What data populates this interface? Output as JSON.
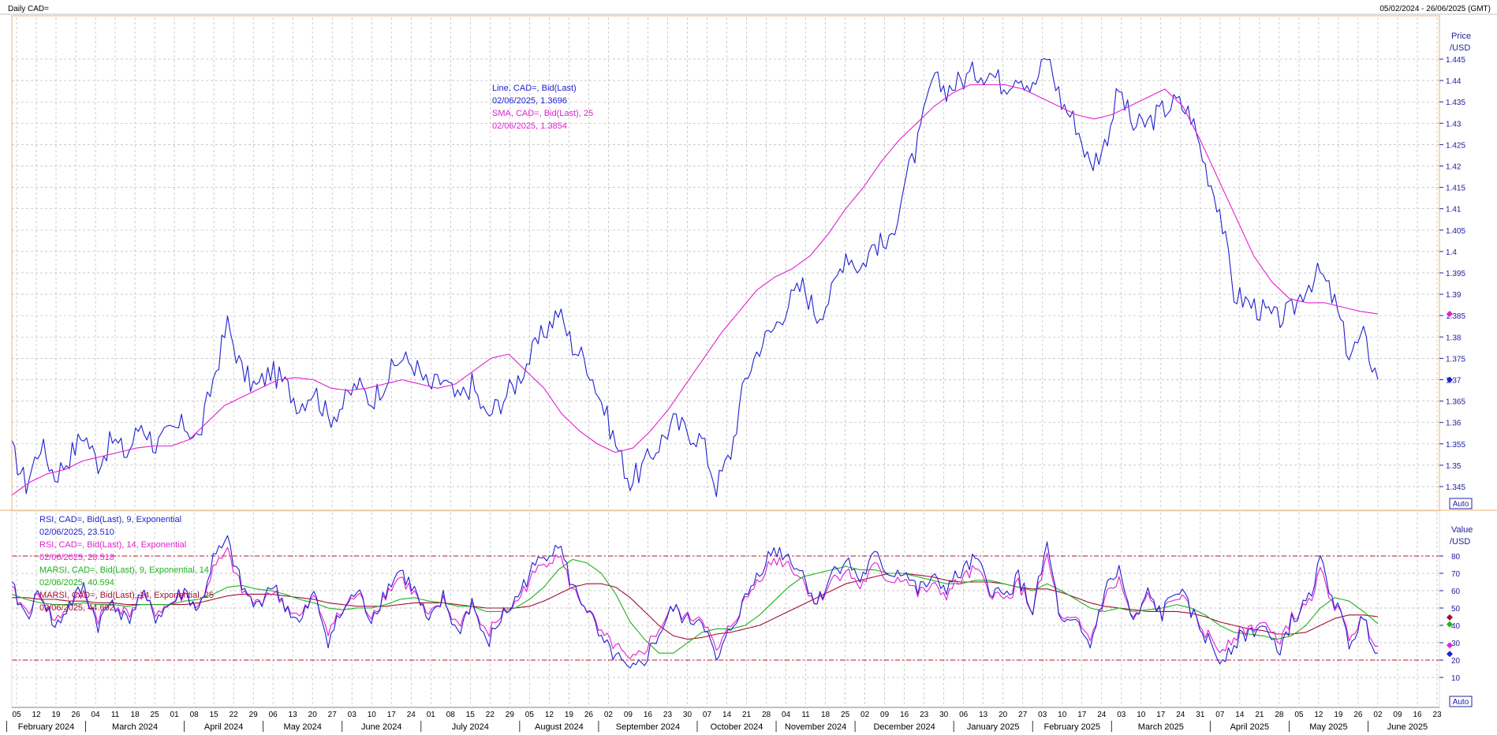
{
  "window": {
    "title": "Daily CAD=",
    "date_range": "05/02/2024 - 26/06/2025 (GMT)"
  },
  "colors": {
    "price_line": "#2020d0",
    "sma_line": "#e020d0",
    "rsi9": "#2020d0",
    "rsi14": "#e020d0",
    "marsi9": "#20b020",
    "marsi14": "#a01030",
    "grid": "#b0b0b0",
    "panel_border": "#f0b070",
    "ref_line": "#c01020"
  },
  "price_panel": {
    "axis_title": "Price",
    "axis_unit": "/USD",
    "auto_button": "Auto",
    "legend": [
      {
        "label": "Line, CAD=, Bid(Last)",
        "value": "02/06/2025, 1.3696",
        "color": "#2020d0"
      },
      {
        "label": "SMA, CAD=, Bid(Last),  25",
        "value": "02/06/2025, 1.3854",
        "color": "#e020d0"
      }
    ]
  },
  "rsi_panel": {
    "axis_title": "Value",
    "axis_unit": "/USD",
    "auto_button": "Auto",
    "legend": [
      {
        "label": "RSI, CAD=, Bid(Last),  9, Exponential",
        "value": "02/06/2025, 23.510",
        "color": "#2020d0"
      },
      {
        "label": "RSI, CAD=, Bid(Last),  14, Exponential",
        "value": "02/06/2025, 28.518",
        "color": "#e020d0"
      },
      {
        "label": "MARSI, CAD=, Bid(Last),  9, Exponential, 14",
        "value": "02/06/2025, 40.594",
        "color": "#20b020"
      },
      {
        "label": "MARSI, CAD=, Bid(Last),  14, Exponential, 25",
        "value": "02/06/2025, 44.602",
        "color": "#a01030"
      }
    ]
  },
  "chart_data": [
    {
      "type": "line",
      "panel": "price",
      "ylim": [
        1.341,
        1.45
      ],
      "yticks": [
        1.345,
        1.35,
        1.355,
        1.36,
        1.365,
        1.37,
        1.375,
        1.38,
        1.385,
        1.39,
        1.395,
        1.4,
        1.405,
        1.41,
        1.415,
        1.42,
        1.425,
        1.43,
        1.435,
        1.44,
        1.445
      ],
      "ytick_labels": [
        "1.345",
        "1.35",
        "1.355",
        "1.36",
        "1.365",
        "1.37",
        "1.375",
        "1.38",
        "1.385",
        "1.39",
        "1.395",
        "1.4",
        "1.405",
        "1.41",
        "1.415",
        "1.42",
        "1.425",
        "1.43",
        "1.435",
        "1.44",
        "1.445"
      ],
      "x_day_labels": [
        "05",
        "12",
        "19",
        "26",
        "04",
        "11",
        "18",
        "25",
        "01",
        "08",
        "15",
        "22",
        "29",
        "06",
        "13",
        "20",
        "27",
        "03",
        "10",
        "17",
        "24",
        "01",
        "08",
        "15",
        "22",
        "29",
        "05",
        "12",
        "19",
        "26",
        "02",
        "09",
        "16",
        "23",
        "30",
        "07",
        "14",
        "21",
        "28",
        "04",
        "11",
        "18",
        "25",
        "02",
        "09",
        "16",
        "23",
        "30",
        "06",
        "13",
        "20",
        "27",
        "03",
        "10",
        "17",
        "24",
        "03",
        "10",
        "17",
        "24",
        "31",
        "07",
        "14",
        "21",
        "28",
        "05",
        "12",
        "19",
        "26",
        "02",
        "09",
        "16",
        "23"
      ],
      "x_months": [
        "February 2024",
        "March 2024",
        "April 2024",
        "May 2024",
        "June 2024",
        "July 2024",
        "August 2024",
        "September 2024",
        "October 2024",
        "November 2024",
        "December 2024",
        "January 2025",
        "February 2025",
        "March 2025",
        "April 2025",
        "May 2025",
        "June 2025"
      ],
      "last_date": "02/06/2025",
      "grid": true,
      "series": [
        {
          "name": "Line, CAD=, Bid(Last)",
          "weekly": [
            1.3535,
            1.3455,
            1.355,
            1.3475,
            1.352,
            1.3575,
            1.3505,
            1.356,
            1.3525,
            1.36,
            1.3545,
            1.3575,
            1.3595,
            1.356,
            1.37,
            1.383,
            1.372,
            1.368,
            1.372,
            1.369,
            1.364,
            1.368,
            1.361,
            1.364,
            1.369,
            1.365,
            1.37,
            1.375,
            1.3735,
            1.368,
            1.37,
            1.365,
            1.369,
            1.361,
            1.365,
            1.369,
            1.375,
            1.381,
            1.386,
            1.378,
            1.374,
            1.365,
            1.355,
            1.346,
            1.35,
            1.355,
            1.36,
            1.358,
            1.356,
            1.345,
            1.353,
            1.37,
            1.378,
            1.382,
            1.388,
            1.392,
            1.385,
            1.39,
            1.4,
            1.396,
            1.402,
            1.401,
            1.415,
            1.425,
            1.44,
            1.438,
            1.44,
            1.442,
            1.442,
            1.439,
            1.442,
            1.438,
            1.446,
            1.435,
            1.43,
            1.42,
            1.425,
            1.438,
            1.429,
            1.43,
            1.433,
            1.435,
            1.432,
            1.42,
            1.41,
            1.39,
            1.388,
            1.386,
            1.384,
            1.386,
            1.392,
            1.395,
            1.388,
            1.376,
            1.38,
            1.37
          ],
          "color": "#2020d0"
        },
        {
          "name": "SMA, CAD=, Bid(Last),  25",
          "weekly": [
            1.343,
            1.346,
            1.348,
            1.349,
            1.351,
            1.352,
            1.353,
            1.354,
            1.3545,
            1.3545,
            1.356,
            1.36,
            1.364,
            1.366,
            1.368,
            1.37,
            1.3705,
            1.37,
            1.368,
            1.3675,
            1.368,
            1.369,
            1.37,
            1.369,
            1.368,
            1.369,
            1.372,
            1.375,
            1.376,
            1.372,
            1.368,
            1.362,
            1.358,
            1.355,
            1.353,
            1.354,
            1.358,
            1.363,
            1.369,
            1.375,
            1.381,
            1.386,
            1.391,
            1.394,
            1.396,
            1.399,
            1.404,
            1.41,
            1.415,
            1.421,
            1.426,
            1.43,
            1.434,
            1.437,
            1.439,
            1.439,
            1.439,
            1.438,
            1.436,
            1.434,
            1.432,
            1.431,
            1.432,
            1.434,
            1.436,
            1.438,
            1.434,
            1.426,
            1.417,
            1.408,
            1.399,
            1.393,
            1.389,
            1.388,
            1.388,
            1.387,
            1.386,
            1.3854
          ],
          "color": "#e020d0"
        }
      ]
    },
    {
      "type": "line",
      "panel": "rsi",
      "ylim": [
        0,
        90
      ],
      "yticks": [
        10,
        20,
        30,
        40,
        50,
        60,
        70,
        80
      ],
      "ytick_labels": [
        "10",
        "20",
        "30",
        "40",
        "50",
        "60",
        "70",
        "80"
      ],
      "reference_lines": [
        20,
        80
      ],
      "series": [
        {
          "name": "RSI, CAD=, Bid(Last),  9, Exponential",
          "weekly": [
            62,
            45,
            60,
            38,
            52,
            62,
            40,
            55,
            42,
            58,
            45,
            52,
            60,
            48,
            78,
            88,
            62,
            50,
            64,
            52,
            40,
            58,
            32,
            48,
            60,
            44,
            60,
            72,
            60,
            40,
            56,
            35,
            54,
            28,
            44,
            54,
            70,
            80,
            88,
            62,
            50,
            30,
            22,
            12,
            20,
            35,
            50,
            42,
            45,
            18,
            38,
            55,
            72,
            84,
            80,
            70,
            52,
            70,
            78,
            66,
            80,
            70,
            72,
            60,
            66,
            62,
            70,
            78,
            62,
            56,
            68,
            48,
            86,
            40,
            40,
            28,
            60,
            72,
            40,
            58,
            46,
            62,
            48,
            34,
            20,
            30,
            36,
            40,
            24,
            42,
            52,
            76,
            54,
            30,
            44,
            24
          ],
          "color": "#2020d0"
        },
        {
          "name": "RSI, CAD=, Bid(Last),  14, Exponential",
          "weekly": [
            60,
            48,
            58,
            42,
            52,
            58,
            44,
            54,
            46,
            56,
            48,
            52,
            58,
            50,
            72,
            82,
            60,
            52,
            60,
            52,
            44,
            56,
            38,
            48,
            58,
            46,
            58,
            68,
            58,
            44,
            54,
            40,
            52,
            34,
            46,
            52,
            66,
            76,
            82,
            60,
            50,
            34,
            28,
            18,
            26,
            38,
            50,
            44,
            46,
            24,
            40,
            54,
            68,
            78,
            76,
            66,
            52,
            66,
            72,
            62,
            74,
            66,
            68,
            58,
            62,
            58,
            66,
            72,
            60,
            54,
            64,
            48,
            80,
            42,
            42,
            32,
            56,
            66,
            42,
            56,
            46,
            58,
            48,
            36,
            26,
            34,
            38,
            42,
            30,
            44,
            50,
            70,
            52,
            34,
            44,
            28
          ],
          "color": "#e020d0"
        },
        {
          "name": "MARSI, CAD=, Bid(Last),  9, Exponential, 14",
          "weekly": [
            58,
            55,
            53,
            52,
            52,
            53,
            52,
            52,
            51,
            52,
            52,
            52,
            54,
            55,
            58,
            62,
            63,
            61,
            60,
            58,
            55,
            53,
            50,
            49,
            50,
            50,
            52,
            55,
            56,
            54,
            53,
            51,
            51,
            48,
            48,
            50,
            55,
            62,
            72,
            78,
            76,
            70,
            58,
            42,
            32,
            24,
            24,
            30,
            36,
            38,
            38,
            40,
            46,
            54,
            62,
            68,
            70,
            72,
            74,
            72,
            72,
            70,
            70,
            68,
            66,
            64,
            64,
            66,
            66,
            64,
            62,
            60,
            64,
            60,
            55,
            50,
            48,
            50,
            48,
            49,
            50,
            52,
            50,
            46,
            40,
            36,
            35,
            34,
            32,
            34,
            40,
            50,
            56,
            54,
            48,
            41
          ],
          "color": "#20b020"
        },
        {
          "name": "MARSI, CAD=, Bid(Last),  14, Exponential, 25",
          "weekly": [
            56,
            56,
            55,
            55,
            54,
            54,
            53,
            53,
            52,
            52,
            52,
            52,
            52,
            53,
            55,
            57,
            58,
            58,
            58,
            57,
            56,
            55,
            53,
            52,
            51,
            51,
            51,
            52,
            53,
            53,
            53,
            52,
            51,
            50,
            50,
            50,
            51,
            54,
            58,
            62,
            64,
            64,
            62,
            56,
            48,
            40,
            34,
            32,
            33,
            35,
            36,
            38,
            40,
            44,
            48,
            52,
            56,
            60,
            64,
            66,
            68,
            70,
            70,
            69,
            68,
            66,
            65,
            65,
            65,
            64,
            62,
            61,
            61,
            59,
            56,
            53,
            51,
            50,
            49,
            48,
            48,
            48,
            47,
            45,
            42,
            40,
            38,
            37,
            35,
            35,
            36,
            40,
            44,
            46,
            46,
            45
          ],
          "color": "#a01030"
        }
      ]
    }
  ]
}
